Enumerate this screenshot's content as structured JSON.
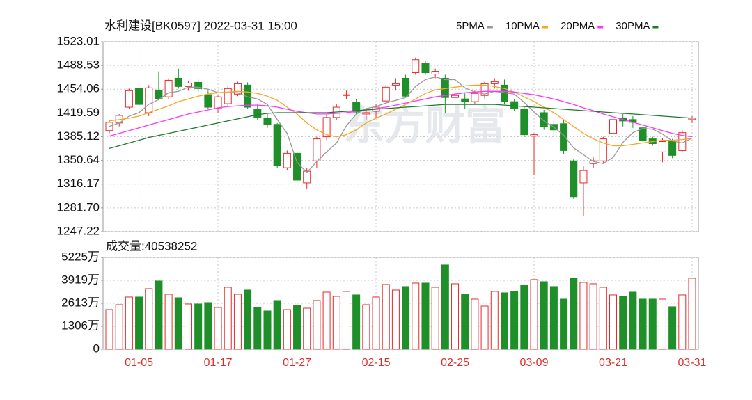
{
  "chart_data": [
    {
      "type": "candlestick",
      "title": "水利建设[BK0597] 2022-03-31 15:00",
      "watermark": "东方财富",
      "up_color": "#e8282a",
      "down_color": "#1f8f2a",
      "open": [
        1394,
        1405,
        1428,
        1455,
        1420,
        1452,
        1443,
        1470,
        1458,
        1464,
        1446,
        1426,
        1433,
        1447,
        1460,
        1425,
        1412,
        1403,
        1340,
        1361,
        1318,
        1350,
        1385,
        1413,
        1445,
        1435,
        1418,
        1422,
        1437,
        1460,
        1470,
        1478,
        1492,
        1476,
        1470,
        1442,
        1440,
        1436,
        1445,
        1462,
        1460,
        1436,
        1425,
        1386,
        1420,
        1403,
        1404,
        1350,
        1318,
        1346,
        1350,
        1390,
        1412,
        1410,
        1398,
        1382,
        1363,
        1378,
        1365,
        1410
      ],
      "high": [
        1410,
        1418,
        1455,
        1462,
        1460,
        1480,
        1470,
        1484,
        1466,
        1468,
        1452,
        1445,
        1458,
        1465,
        1464,
        1432,
        1418,
        1405,
        1365,
        1363,
        1340,
        1385,
        1418,
        1432,
        1452,
        1440,
        1425,
        1432,
        1460,
        1470,
        1475,
        1500,
        1496,
        1484,
        1475,
        1460,
        1448,
        1452,
        1465,
        1470,
        1468,
        1440,
        1430,
        1390,
        1424,
        1410,
        1410,
        1352,
        1342,
        1355,
        1385,
        1412,
        1418,
        1415,
        1400,
        1385,
        1383,
        1382,
        1395,
        1415
      ],
      "low": [
        1390,
        1400,
        1425,
        1428,
        1415,
        1438,
        1440,
        1455,
        1452,
        1450,
        1425,
        1420,
        1430,
        1444,
        1425,
        1410,
        1398,
        1340,
        1336,
        1320,
        1310,
        1340,
        1380,
        1410,
        1440,
        1418,
        1410,
        1412,
        1435,
        1452,
        1442,
        1475,
        1475,
        1470,
        1420,
        1430,
        1425,
        1432,
        1440,
        1455,
        1432,
        1422,
        1385,
        1330,
        1395,
        1385,
        1360,
        1295,
        1270,
        1340,
        1346,
        1385,
        1400,
        1398,
        1378,
        1372,
        1348,
        1354,
        1362,
        1405
      ],
      "close": [
        1406,
        1416,
        1452,
        1432,
        1456,
        1440,
        1467,
        1458,
        1463,
        1455,
        1428,
        1443,
        1455,
        1462,
        1428,
        1413,
        1403,
        1343,
        1361,
        1322,
        1335,
        1382,
        1413,
        1428,
        1446,
        1421,
        1420,
        1428,
        1457,
        1462,
        1444,
        1497,
        1478,
        1480,
        1442,
        1445,
        1436,
        1448,
        1462,
        1465,
        1436,
        1426,
        1388,
        1388,
        1400,
        1395,
        1365,
        1298,
        1336,
        1350,
        1382,
        1410,
        1408,
        1406,
        1380,
        1375,
        1378,
        1358,
        1391,
        1412
      ],
      "series": [
        {
          "name": "5PMA",
          "color": "#999999",
          "values": [
            1400,
            1405,
            1415,
            1420,
            1432,
            1439,
            1449,
            1451,
            1457,
            1457,
            1454,
            1449,
            1449,
            1449,
            1443,
            1440,
            1432,
            1410,
            1390,
            1348,
            1333,
            1349,
            1363,
            1376,
            1401,
            1418,
            1426,
            1429,
            1434,
            1438,
            1442,
            1458,
            1468,
            1472,
            1468,
            1468,
            1456,
            1450,
            1447,
            1451,
            1449,
            1447,
            1435,
            1421,
            1408,
            1399,
            1387,
            1369,
            1359,
            1349,
            1346,
            1355,
            1377,
            1391,
            1397,
            1396,
            1389,
            1379,
            1376,
            1383
          ]
        },
        {
          "name": "10PMA",
          "color": "#f5a623",
          "values": [
            1408,
            1410,
            1412,
            1415,
            1420,
            1425,
            1430,
            1436,
            1440,
            1444,
            1447,
            1449,
            1450,
            1451,
            1450,
            1448,
            1444,
            1438,
            1428,
            1418,
            1405,
            1395,
            1388,
            1385,
            1388,
            1395,
            1405,
            1412,
            1418,
            1425,
            1432,
            1440,
            1448,
            1453,
            1455,
            1457,
            1459,
            1460,
            1460,
            1458,
            1455,
            1450,
            1443,
            1436,
            1428,
            1420,
            1410,
            1400,
            1390,
            1382,
            1376,
            1372,
            1372,
            1374,
            1376,
            1378,
            1380,
            1380,
            1381,
            1383
          ]
        },
        {
          "name": "20PMA",
          "color": "#ff33ff",
          "values": [
            1386,
            1390,
            1394,
            1398,
            1402,
            1406,
            1410,
            1414,
            1418,
            1421,
            1424,
            1427,
            1429,
            1430,
            1431,
            1431,
            1430,
            1428,
            1425,
            1422,
            1420,
            1418,
            1418,
            1419,
            1420,
            1422,
            1424,
            1426,
            1428,
            1431,
            1434,
            1437,
            1440,
            1443,
            1445,
            1447,
            1449,
            1450,
            1451,
            1451,
            1451,
            1450,
            1448,
            1446,
            1443,
            1440,
            1436,
            1432,
            1427,
            1423,
            1418,
            1414,
            1410,
            1406,
            1402,
            1398,
            1394,
            1390,
            1387,
            1385
          ]
        },
        {
          "name": "30PMA",
          "color": "#1f7a2e",
          "values": [
            1368,
            1372,
            1376,
            1380,
            1384,
            1387,
            1390,
            1393,
            1396,
            1399,
            1402,
            1405,
            1408,
            1411,
            1414,
            1417,
            1419,
            1420,
            1420,
            1420,
            1420,
            1420,
            1420,
            1421,
            1422,
            1423,
            1424,
            1425,
            1426,
            1427,
            1428,
            1429,
            1430,
            1431,
            1432,
            1432,
            1432,
            1432,
            1432,
            1432,
            1431,
            1430,
            1429,
            1428,
            1427,
            1426,
            1425,
            1424,
            1423,
            1422,
            1421,
            1420,
            1419,
            1418,
            1417,
            1416,
            1415,
            1414,
            1413,
            1412
          ]
        }
      ],
      "ylim": [
        1247.22,
        1523.01
      ],
      "yticks": [
        1523.01,
        1488.53,
        1454.06,
        1419.59,
        1385.12,
        1350.64,
        1316.17,
        {
          "value": 1281.7,
          "label": "1281.70"
        },
        1247.22
      ],
      "grid": true
    },
    {
      "type": "bar",
      "title": "成交量:40538252",
      "categories": [
        null,
        null,
        null,
        "01-05",
        null,
        null,
        null,
        null,
        null,
        null,
        null,
        "01-17",
        null,
        null,
        null,
        null,
        null,
        null,
        null,
        "01-27",
        null,
        null,
        null,
        null,
        null,
        null,
        null,
        "02-15",
        null,
        null,
        null,
        null,
        null,
        null,
        null,
        "02-25",
        null,
        null,
        null,
        null,
        null,
        null,
        null,
        "03-09",
        null,
        null,
        null,
        null,
        null,
        null,
        null,
        "03-21",
        null,
        null,
        null,
        null,
        null,
        null,
        null,
        "03-31"
      ],
      "values": [
        2257,
        2534,
        2970,
        2970,
        3445,
        3880,
        3128,
        2930,
        2574,
        2574,
        2653,
        2376,
        3524,
        3128,
        3366,
        2376,
        2178,
        2772,
        2257,
        2495,
        2336,
        2772,
        3247,
        3010,
        3287,
        3089,
        2534,
        2970,
        3683,
        3366,
        3564,
        3762,
        3762,
        3524,
        4792,
        3722,
        3128,
        2851,
        2455,
        3287,
        3208,
        3287,
        3643,
        3960,
        3841,
        3564,
        2851,
        4039,
        3802,
        3722,
        3524,
        3089,
        3010,
        3247,
        2851,
        2851,
        2851,
        2416,
        3089,
        4039
      ],
      "ylim": [
        0,
        5225
      ],
      "yticks": [
        {
          "value": 5225,
          "label": "5225万"
        },
        {
          "value": 3919,
          "label": "3919万"
        },
        {
          "value": 2613,
          "label": "2613万"
        },
        {
          "value": 1306,
          "label": "1306万"
        },
        0
      ],
      "grid": true
    }
  ]
}
